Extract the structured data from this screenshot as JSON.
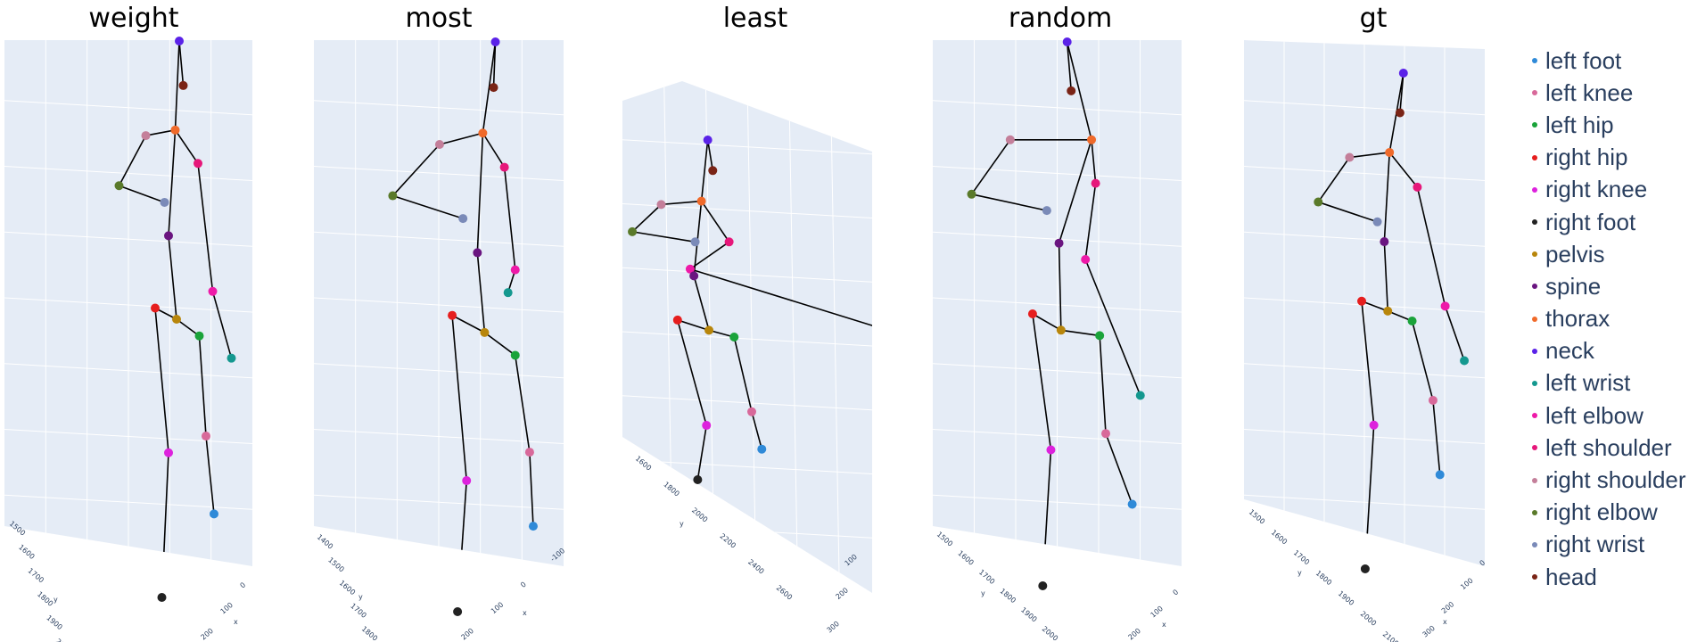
{
  "chart_data": {
    "type": "scatter",
    "subtype": "3d-skeleton",
    "panels": [
      {
        "title": "weight",
        "axis_labels": {
          "x": "x",
          "y": "y",
          "z": "z"
        },
        "y_ticks": [
          "1500",
          "1600",
          "1700",
          "1800",
          "1900",
          "2000"
        ],
        "x_ticks": [
          "0",
          "100",
          "200"
        ],
        "keypoints": {
          "neck": [
            0.56,
            0.0
          ],
          "head": [
            0.59,
            0.08
          ],
          "thorax": [
            0.53,
            0.16
          ],
          "right shoulder": [
            0.31,
            0.17
          ],
          "right elbow": [
            0.11,
            0.26
          ],
          "right wrist": [
            0.45,
            0.29
          ],
          "left shoulder": [
            0.7,
            0.22
          ],
          "left elbow": [
            0.81,
            0.45
          ],
          "left wrist": [
            0.95,
            0.57
          ],
          "spine": [
            0.48,
            0.35
          ],
          "pelvis": [
            0.54,
            0.5
          ],
          "right hip": [
            0.38,
            0.48
          ],
          "left hip": [
            0.71,
            0.53
          ],
          "right knee": [
            0.48,
            0.74
          ],
          "right foot": [
            0.43,
            1.0
          ],
          "left knee": [
            0.76,
            0.71
          ],
          "left foot": [
            0.82,
            0.85
          ]
        }
      },
      {
        "title": "most",
        "axis_labels": {
          "x": "x",
          "y": "y",
          "z": "z"
        },
        "y_ticks": [
          "1400",
          "1500",
          "1600",
          "1700",
          "1800"
        ],
        "x_ticks": [
          "-100",
          "0",
          "100",
          "200"
        ],
        "keypoints": {
          "neck": [
            0.77,
            0.0
          ],
          "head": [
            0.76,
            0.08
          ],
          "thorax": [
            0.7,
            0.16
          ],
          "right shoulder": [
            0.46,
            0.18
          ],
          "right elbow": [
            0.2,
            0.27
          ],
          "right wrist": [
            0.59,
            0.31
          ],
          "left shoulder": [
            0.82,
            0.22
          ],
          "left elbow": [
            0.88,
            0.4
          ],
          "left wrist": [
            0.84,
            0.44
          ],
          "spine": [
            0.67,
            0.37
          ],
          "pelvis": [
            0.71,
            0.51
          ],
          "right hip": [
            0.53,
            0.48
          ],
          "left hip": [
            0.88,
            0.55
          ],
          "right knee": [
            0.61,
            0.77
          ],
          "right foot": [
            0.56,
            1.0
          ],
          "left knee": [
            0.96,
            0.72
          ],
          "left foot": [
            0.98,
            0.85
          ]
        }
      },
      {
        "title": "least",
        "axis_labels": {
          "x": "x",
          "y": "y",
          "z": "z"
        },
        "y_ticks": [
          "1600",
          "1800",
          "2000",
          "2200",
          "2400",
          "2600"
        ],
        "x_ticks": [
          "100",
          "200",
          "300"
        ],
        "keypoints": {
          "neck": [
            0.65,
            0.0
          ],
          "head": [
            0.69,
            0.09
          ],
          "thorax": [
            0.6,
            0.18
          ],
          "right shoulder": [
            0.28,
            0.19
          ],
          "right elbow": [
            0.05,
            0.27
          ],
          "right wrist": [
            0.55,
            0.3
          ],
          "left shoulder": [
            0.82,
            0.3
          ],
          "left elbow": [
            0.51,
            0.38
          ],
          "left wrist": [
            3.3,
            0.7
          ],
          "spine": [
            0.54,
            0.4
          ],
          "pelvis": [
            0.66,
            0.56
          ],
          "right hip": [
            0.41,
            0.53
          ],
          "left hip": [
            0.86,
            0.58
          ],
          "right knee": [
            0.64,
            0.84
          ],
          "right foot": [
            0.57,
            1.0
          ],
          "left knee": [
            1.0,
            0.8
          ],
          "left foot": [
            1.08,
            0.91
          ]
        }
      },
      {
        "title": "random",
        "axis_labels": {
          "x": "x",
          "y": "y",
          "z": "z"
        },
        "y_ticks": [
          "1500",
          "1600",
          "1700",
          "1800",
          "1900",
          "2000"
        ],
        "x_ticks": [
          "0",
          "100",
          "200"
        ],
        "keypoints": {
          "neck": [
            0.56,
            0.0
          ],
          "head": [
            0.58,
            0.09
          ],
          "thorax": [
            0.68,
            0.18
          ],
          "right shoulder": [
            0.28,
            0.18
          ],
          "right elbow": [
            0.09,
            0.28
          ],
          "right wrist": [
            0.46,
            0.31
          ],
          "left shoulder": [
            0.7,
            0.26
          ],
          "left elbow": [
            0.65,
            0.4
          ],
          "left wrist": [
            0.92,
            0.65
          ],
          "spine": [
            0.52,
            0.37
          ],
          "pelvis": [
            0.53,
            0.53
          ],
          "right hip": [
            0.39,
            0.5
          ],
          "left hip": [
            0.72,
            0.54
          ],
          "right knee": [
            0.48,
            0.75
          ],
          "right foot": [
            0.44,
            1.0
          ],
          "left knee": [
            0.75,
            0.72
          ],
          "left foot": [
            0.88,
            0.85
          ]
        }
      },
      {
        "title": "gt",
        "axis_labels": {
          "x": "x",
          "y": "y",
          "z": "z"
        },
        "y_ticks": [
          "1500",
          "1600",
          "1700",
          "1800",
          "1900",
          "2000",
          "2100"
        ],
        "x_ticks": [
          "0",
          "100",
          "200",
          "300"
        ],
        "keypoints": {
          "neck": [
            0.64,
            0.0
          ],
          "head": [
            0.62,
            0.08
          ],
          "thorax": [
            0.56,
            0.16
          ],
          "right shoulder": [
            0.33,
            0.17
          ],
          "right elbow": [
            0.15,
            0.26
          ],
          "right wrist": [
            0.49,
            0.3
          ],
          "left shoulder": [
            0.72,
            0.23
          ],
          "left elbow": [
            0.88,
            0.47
          ],
          "left wrist": [
            0.99,
            0.58
          ],
          "spine": [
            0.53,
            0.34
          ],
          "pelvis": [
            0.55,
            0.48
          ],
          "right hip": [
            0.4,
            0.46
          ],
          "left hip": [
            0.69,
            0.5
          ],
          "right knee": [
            0.47,
            0.71
          ],
          "right foot": [
            0.42,
            1.0
          ],
          "left knee": [
            0.81,
            0.66
          ],
          "left foot": [
            0.85,
            0.81
          ]
        }
      }
    ],
    "bones": [
      [
        "head",
        "neck"
      ],
      [
        "neck",
        "thorax"
      ],
      [
        "thorax",
        "right shoulder"
      ],
      [
        "right shoulder",
        "right elbow"
      ],
      [
        "right elbow",
        "right wrist"
      ],
      [
        "thorax",
        "left shoulder"
      ],
      [
        "left shoulder",
        "left elbow"
      ],
      [
        "left elbow",
        "left wrist"
      ],
      [
        "thorax",
        "spine"
      ],
      [
        "spine",
        "pelvis"
      ],
      [
        "pelvis",
        "right hip"
      ],
      [
        "right hip",
        "right knee"
      ],
      [
        "right knee",
        "right foot"
      ],
      [
        "pelvis",
        "left hip"
      ],
      [
        "left hip",
        "left knee"
      ],
      [
        "left knee",
        "left foot"
      ]
    ],
    "legend": {
      "placement": "right",
      "entries": [
        {
          "name": "left foot",
          "color": "#2f8ad8"
        },
        {
          "name": "left knee",
          "color": "#d8699a"
        },
        {
          "name": "left hip",
          "color": "#1aa33a"
        },
        {
          "name": "right hip",
          "color": "#e61e1e"
        },
        {
          "name": "right knee",
          "color": "#dd22dd"
        },
        {
          "name": "right foot",
          "color": "#222222"
        },
        {
          "name": "pelvis",
          "color": "#b8860b"
        },
        {
          "name": "spine",
          "color": "#6a1580"
        },
        {
          "name": "thorax",
          "color": "#f06a2a"
        },
        {
          "name": "neck",
          "color": "#5a22e8"
        },
        {
          "name": "left wrist",
          "color": "#14988f"
        },
        {
          "name": "left elbow",
          "color": "#ee1aa8"
        },
        {
          "name": "left shoulder",
          "color": "#e6177a"
        },
        {
          "name": "right shoulder",
          "color": "#c47f9a"
        },
        {
          "name": "right elbow",
          "color": "#5a7a2a"
        },
        {
          "name": "right wrist",
          "color": "#7a8ab8"
        },
        {
          "name": "head",
          "color": "#7a2416"
        }
      ]
    },
    "grid": true,
    "bone_color": "#000000",
    "scene_background": "#e5ecf6",
    "gridline_color": "#ffffff",
    "title_color": "#000000",
    "tick_color": "#2a3f5f",
    "legend_text_color": "#2a3f5f"
  }
}
